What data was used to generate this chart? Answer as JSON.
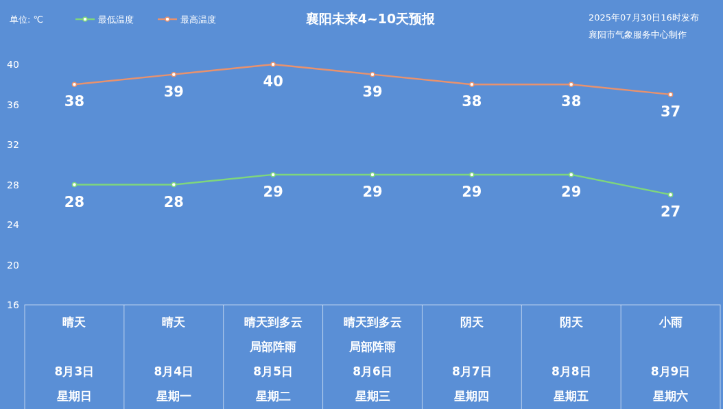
{
  "chart_data": {
    "type": "line",
    "title": "襄阳未来4~10天预报",
    "ylabel": "单位: ℃",
    "annotations": [
      "2025年07月30日16时发布",
      "襄阳市气象服务中心制作",
      "晴天",
      "晴天",
      "晴天到多云局部阵雨",
      "晴天到多云局部阵雨",
      "阴天",
      "阴天",
      "小雨",
      "星期日",
      "星期一",
      "星期二",
      "星期三",
      "星期四",
      "星期五",
      "星期六"
    ],
    "categories": [
      "8月3日",
      "8月4日",
      "8月5日",
      "8月6日",
      "8月7日",
      "8月8日",
      "8月9日"
    ],
    "series": [
      {
        "name": "最低温度",
        "color": "#7fd67c",
        "values": [
          28,
          28,
          29,
          29,
          29,
          29,
          27
        ]
      },
      {
        "name": "最高温度",
        "color": "#e8926e",
        "values": [
          38,
          39,
          40,
          39,
          38,
          38,
          37
        ]
      }
    ],
    "ylim": [
      16,
      40
    ],
    "yticks": [
      16,
      20,
      24,
      28,
      32,
      36,
      40
    ],
    "data_labels": true,
    "legend": "top left",
    "marker": "circle",
    "line_style": "solid"
  }
}
